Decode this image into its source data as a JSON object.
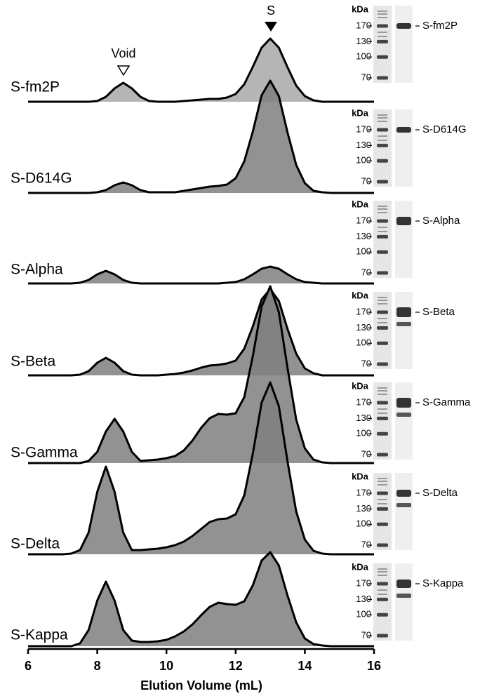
{
  "chart_data": {
    "type": "ridgeline",
    "x_label": "Elution Volume (mL)",
    "xlim": [
      6,
      16
    ],
    "xticks": [
      6,
      8,
      10,
      12,
      14,
      16
    ],
    "annotations": [
      "Void",
      "S"
    ],
    "gel": {
      "unit": "kDa",
      "markers": [
        170,
        130,
        100,
        70
      ]
    },
    "x": [
      6,
      6.25,
      6.5,
      6.75,
      7,
      7.25,
      7.5,
      7.75,
      8,
      8.25,
      8.5,
      8.75,
      9,
      9.25,
      9.5,
      9.75,
      10,
      10.25,
      10.5,
      10.75,
      11,
      11.25,
      11.5,
      11.75,
      12,
      12.25,
      12.5,
      12.75,
      13,
      13.25,
      13.5,
      13.75,
      14,
      14.25,
      14.5,
      14.75,
      15,
      15.25,
      15.5,
      15.75,
      16
    ],
    "series": [
      {
        "name": "S-fm2P",
        "color": "#a8a8a8",
        "values": [
          0,
          0,
          0,
          0,
          0,
          0,
          0,
          0,
          1,
          7,
          19,
          27,
          19,
          7,
          1,
          0,
          0,
          0,
          1,
          2,
          3,
          4,
          4,
          6,
          11,
          25,
          50,
          77,
          90,
          77,
          49,
          23,
          8,
          2,
          0,
          0,
          0,
          0,
          0,
          0,
          0
        ]
      },
      {
        "name": "S-D614G",
        "color": "#7f7f7f",
        "values": [
          0,
          0,
          0,
          0,
          0,
          0,
          0,
          0,
          1,
          4,
          11,
          15,
          11,
          4,
          1,
          1,
          1,
          1,
          3,
          5,
          7,
          9,
          10,
          12,
          21,
          45,
          88,
          139,
          160,
          138,
          86,
          40,
          14,
          3,
          1,
          0,
          0,
          0,
          0,
          0,
          0
        ]
      },
      {
        "name": "S-Alpha",
        "color": "#7f7f7f",
        "values": [
          0,
          0,
          0,
          0,
          0,
          0,
          1,
          5,
          13,
          18,
          13,
          5,
          1,
          0,
          0,
          0,
          0,
          0,
          0,
          0,
          0,
          0,
          0,
          1,
          2,
          6,
          13,
          21,
          24,
          21,
          13,
          6,
          2,
          1,
          0,
          0,
          0,
          0,
          0,
          0,
          0
        ]
      },
      {
        "name": "S-Beta",
        "color": "#7f7f7f",
        "values": [
          0,
          0,
          0,
          0,
          0,
          0,
          1,
          6,
          18,
          25,
          18,
          6,
          1,
          0,
          0,
          0,
          1,
          2,
          4,
          7,
          11,
          14,
          15,
          17,
          21,
          38,
          70,
          108,
          123,
          106,
          66,
          31,
          10,
          3,
          0,
          0,
          0,
          0,
          0,
          0,
          0
        ]
      },
      {
        "name": "S-Gamma",
        "color": "#7f7f7f",
        "values": [
          0,
          0,
          0,
          0,
          0,
          0,
          0,
          3,
          16,
          45,
          63,
          45,
          16,
          3,
          4,
          5,
          7,
          10,
          18,
          32,
          50,
          64,
          70,
          69,
          71,
          94,
          153,
          223,
          252,
          215,
          135,
          62,
          21,
          5,
          1,
          0,
          0,
          0,
          0,
          0,
          0
        ]
      },
      {
        "name": "S-Delta",
        "color": "#7f7f7f",
        "values": [
          0,
          0,
          0,
          0,
          0,
          1,
          6,
          31,
          89,
          125,
          89,
          31,
          6,
          6,
          7,
          8,
          10,
          13,
          18,
          26,
          36,
          46,
          50,
          51,
          57,
          84,
          144,
          216,
          245,
          211,
          132,
          61,
          21,
          5,
          1,
          0,
          0,
          0,
          0,
          0,
          0
        ]
      },
      {
        "name": "S-Kappa",
        "color": "#7f7f7f",
        "values": [
          0,
          0,
          0,
          0,
          0,
          0,
          4,
          23,
          65,
          92,
          65,
          23,
          8,
          6,
          6,
          7,
          9,
          14,
          21,
          31,
          44,
          56,
          62,
          60,
          59,
          64,
          87,
          122,
          134,
          115,
          72,
          34,
          11,
          3,
          1,
          0,
          0,
          0,
          0,
          0,
          0
        ]
      }
    ]
  }
}
